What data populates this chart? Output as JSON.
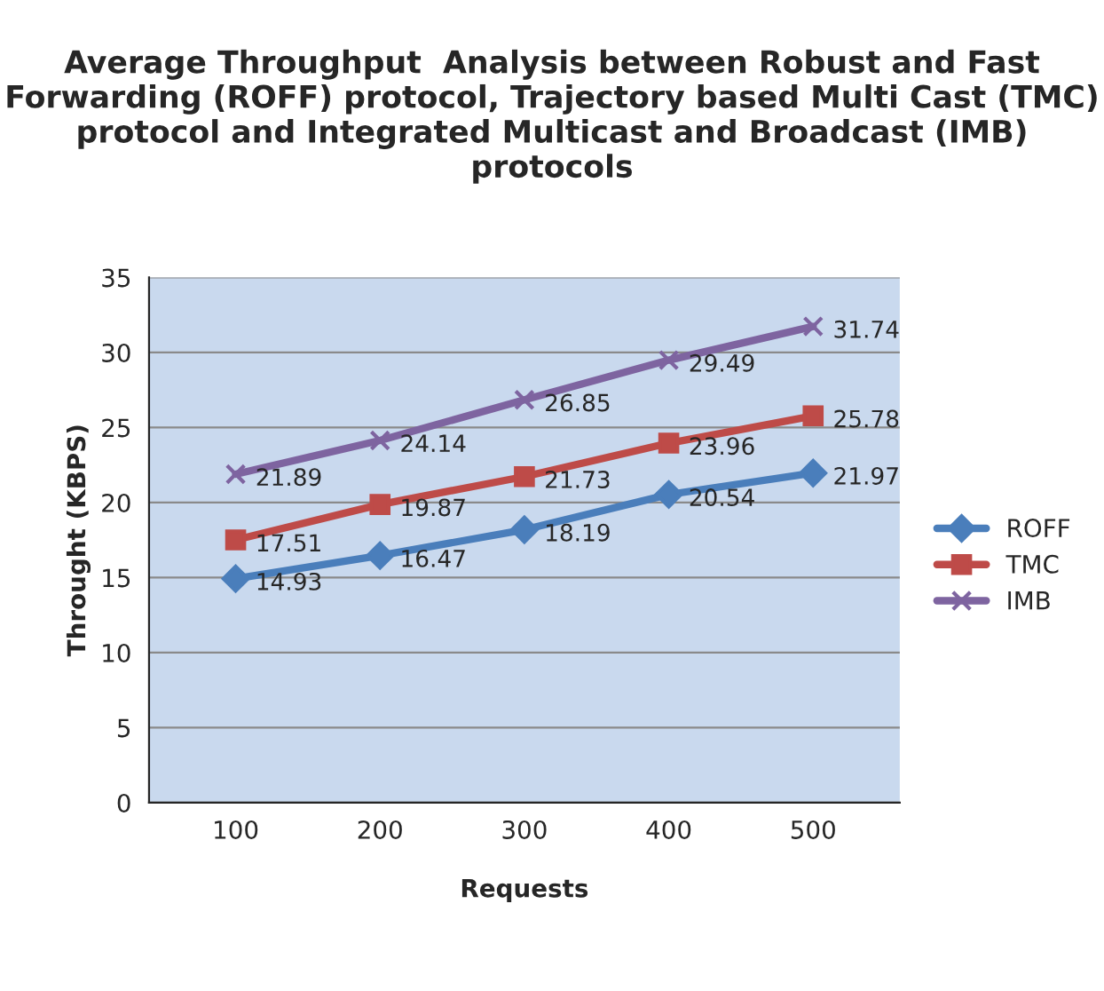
{
  "chart_data": {
    "type": "line",
    "title": "Average Throughput  Analysis between Robust and Fast Forwarding (ROFF) protocol, Trajectory based Multi Cast (TMC) protocol and Integrated Multicast and Broadcast (IMB) protocols",
    "xlabel": "Requests",
    "ylabel": "Throught (KBPS)",
    "categories": [
      "100",
      "200",
      "300",
      "400",
      "500"
    ],
    "series": [
      {
        "name": "ROFF",
        "color": "#4a7ebb",
        "marker": "diamond",
        "values": [
          14.93,
          16.47,
          18.19,
          20.54,
          21.97
        ]
      },
      {
        "name": "TMC",
        "color": "#be4b48",
        "marker": "square",
        "values": [
          17.51,
          19.87,
          21.73,
          23.96,
          25.78
        ]
      },
      {
        "name": "IMB",
        "color": "#7e64a0",
        "marker": "cross",
        "values": [
          21.89,
          24.14,
          26.85,
          29.49,
          31.74
        ]
      }
    ],
    "ylim": [
      0,
      35
    ],
    "yticks": [
      0,
      5,
      10,
      15,
      20,
      25,
      30,
      35
    ],
    "grid": "y",
    "legend": "right",
    "data_labels": true
  }
}
